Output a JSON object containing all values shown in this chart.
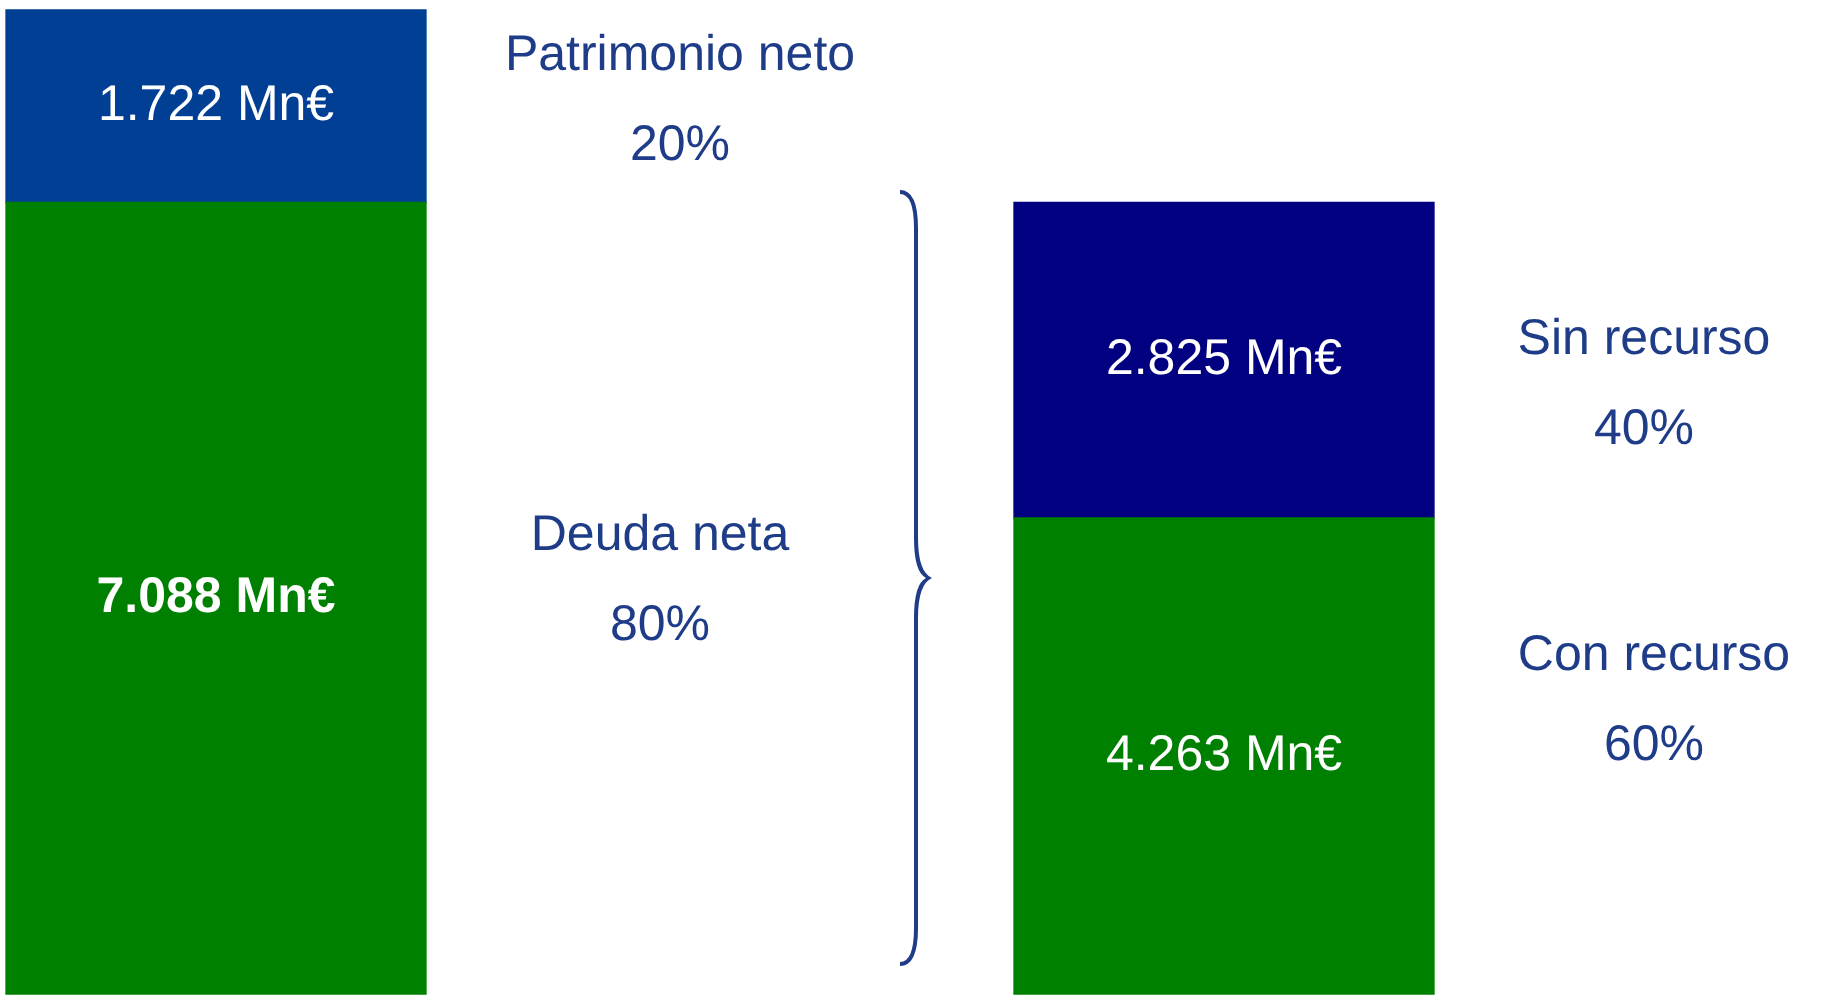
{
  "chart_data": {
    "type": "bar",
    "stacked": true,
    "categories": [
      null,
      null
    ],
    "series": [
      {
        "color": "#008000",
        "values": [
          7088,
          4263
        ],
        "value_labels": [
          "7.088 Mn€",
          "4.263 Mn€"
        ]
      },
      {
        "color": "#003f93",
        "values": [
          1722,
          null
        ],
        "value_labels": [
          "1.722 Mn€",
          null
        ]
      },
      {
        "color": "#000080",
        "values": [
          null,
          2825
        ],
        "value_labels": [
          null,
          "2.825 Mn€"
        ]
      }
    ],
    "annotations": [
      "Patrimonio neto\n20%",
      "Deuda neta\n80%",
      "Sin recurso\n40%",
      "Con recurso\n60%"
    ],
    "legend": false,
    "tick_labels": false
  }
}
